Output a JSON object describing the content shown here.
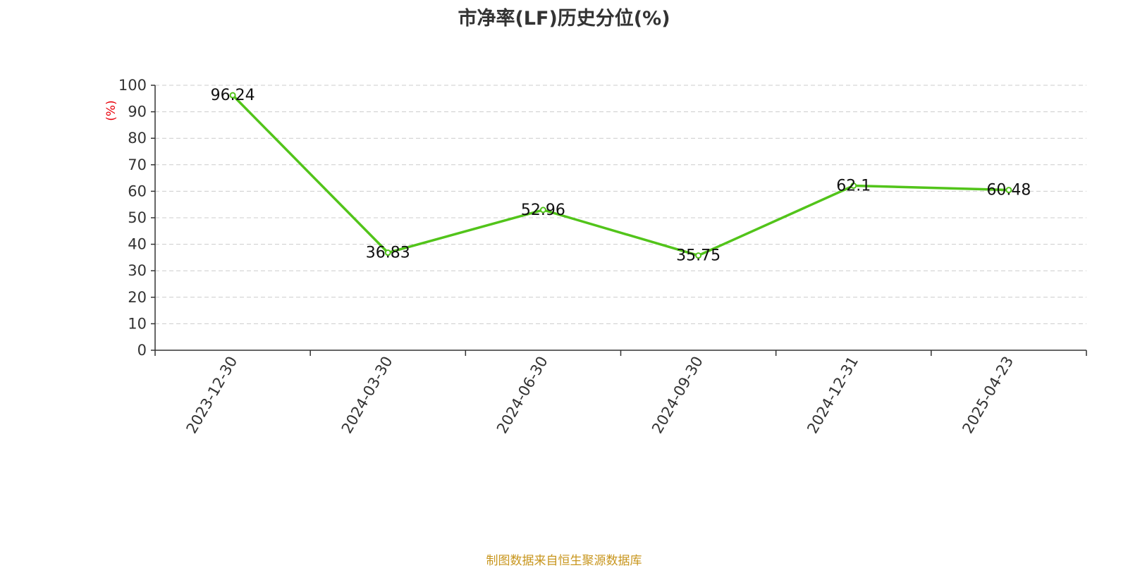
{
  "chart_data": {
    "type": "line",
    "title": "市净率(LF)历史分位(%)",
    "ylabel": "(%)",
    "xlabel": "",
    "categories": [
      "2023-12-30",
      "2024-03-30",
      "2024-06-30",
      "2024-09-30",
      "2024-12-31",
      "2025-04-23"
    ],
    "series": [
      {
        "values": [
          96.24,
          36.83,
          52.96,
          35.75,
          62.1,
          60.48
        ]
      }
    ],
    "data_labels": [
      "96.24",
      "36.83",
      "52.96",
      "35.75",
      "62.1",
      "60.48"
    ],
    "ylim": [
      0,
      100
    ],
    "yticks": [
      "0",
      "10",
      "20",
      "30",
      "40",
      "50",
      "60",
      "70",
      "80",
      "90",
      "100"
    ],
    "grid": true,
    "legend": "none"
  },
  "colors": {
    "line": "#52c41a",
    "ylabel": "#e8000b",
    "source": "#c8961e",
    "grid": "#cccccc",
    "axis": "#333333"
  },
  "source_note": "制图数据来自恒生聚源数据库"
}
